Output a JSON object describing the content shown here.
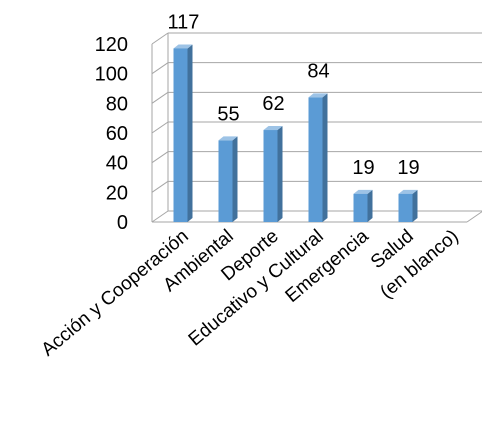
{
  "chart_data": {
    "type": "bar",
    "style": "3d-column",
    "categories": [
      "Acción y Cooperación",
      "Ambiental",
      "Deporte",
      "Educativo y Cultural",
      "Emergencia",
      "Salud",
      "(en blanco)"
    ],
    "values": [
      117,
      55,
      62,
      84,
      19,
      19,
      null
    ],
    "data_labels": [
      "117",
      "55",
      "62",
      "84",
      "19",
      "19",
      ""
    ],
    "ylim": [
      0,
      120
    ],
    "yticks": [
      0,
      20,
      40,
      60,
      80,
      100,
      120
    ],
    "grid": true,
    "legend": "none",
    "bar_color": "#5B9BD5",
    "bar_side_color": "#41719C",
    "bar_top_color": "#9DC3E6",
    "grid_color": "#A6A6A6"
  }
}
